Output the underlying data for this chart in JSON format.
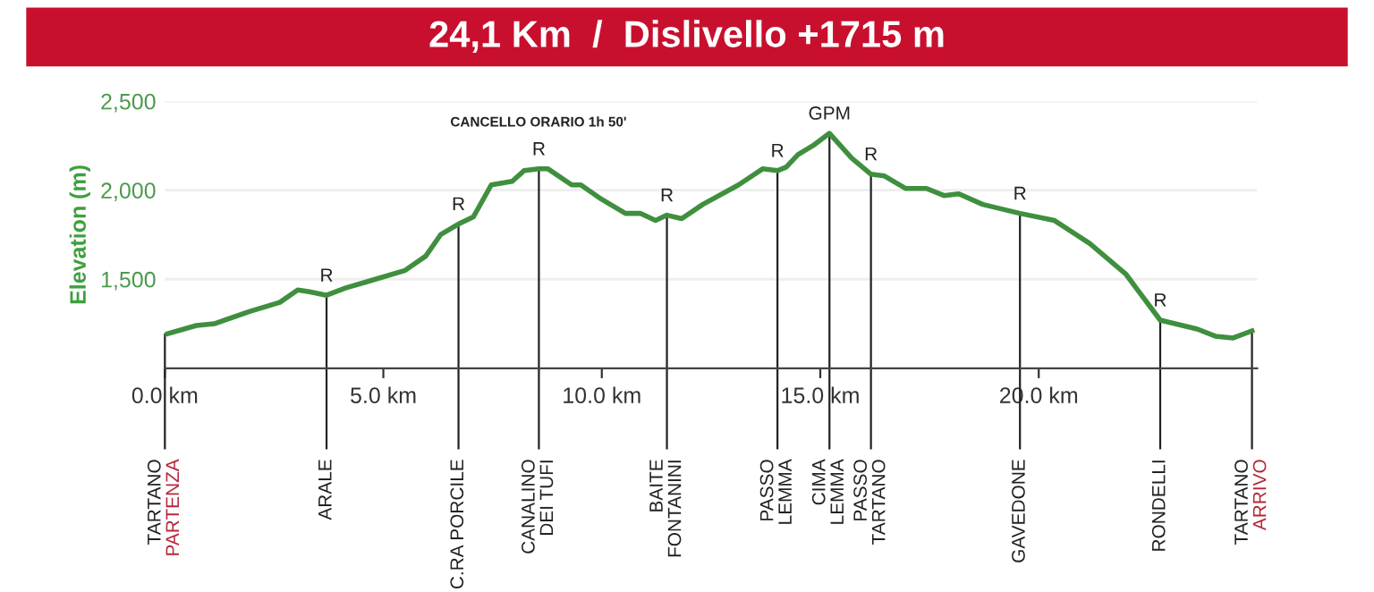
{
  "chart_data": {
    "type": "line",
    "title": "24,1 Km  /  Dislivello +1715 m",
    "ylabel": "Elevation (m)",
    "series": [
      {
        "color": "#3f8f3f",
        "x": [
          0,
          0.72,
          1.13,
          1.95,
          2.63,
          3.04,
          3.31,
          3.7,
          4.13,
          4.68,
          5.5,
          5.97,
          6.31,
          6.72,
          7.06,
          7.47,
          7.95,
          8.22,
          8.56,
          8.77,
          9.31,
          9.52,
          9.99,
          10.54,
          10.88,
          11.23,
          11.49,
          11.83,
          12.31,
          13.13,
          13.68,
          14.02,
          14.22,
          14.49,
          14.83,
          15.21,
          15.72,
          16.16,
          16.47,
          16.95,
          17.43,
          17.83,
          18.17,
          18.72,
          19.57,
          20.36,
          21.17,
          21.99,
          22.78,
          23.63,
          24.04,
          24.45,
          24.88
        ],
        "values": [
          1190,
          1240,
          1250,
          1320,
          1370,
          1440,
          1430,
          1410,
          1450,
          1490,
          1550,
          1630,
          1750,
          1810,
          1850,
          2030,
          2050,
          2110,
          2120,
          2120,
          2030,
          2030,
          1950,
          1870,
          1870,
          1830,
          1860,
          1840,
          1920,
          2030,
          2120,
          2110,
          2130,
          2200,
          2250,
          2320,
          2180,
          2090,
          2080,
          2010,
          2010,
          1970,
          1980,
          1920,
          1870,
          1830,
          1700,
          1530,
          1270,
          1220,
          1180,
          1170,
          1210
        ]
      }
    ],
    "xlim": [
      0,
      25
    ],
    "ylim": [
      1000,
      2500
    ],
    "xticks": [
      {
        "value": 0,
        "label": "0.0 km"
      },
      {
        "value": 5,
        "label": "5.0 km"
      },
      {
        "value": 10,
        "label": "10.0 km"
      },
      {
        "value": 15,
        "label": "15.0 km"
      },
      {
        "value": 20,
        "label": "20.0 km"
      }
    ],
    "yticks": [
      {
        "value": 1500,
        "label": "1,500"
      },
      {
        "value": 2000,
        "label": "2,000"
      },
      {
        "value": 2500,
        "label": "2,500"
      }
    ],
    "grid": "y",
    "legend": false,
    "marker": "none",
    "line_style": "solid",
    "ref_lines": [
      {
        "axis": "x",
        "value": 0,
        "label": "TARTANO\nPARTENZA"
      },
      {
        "axis": "x",
        "value": 3.7,
        "label": "ARALE"
      },
      {
        "axis": "x",
        "value": 6.72,
        "label": "C.RA PORCILE"
      },
      {
        "axis": "x",
        "value": 8.56,
        "label": "CANALINO\nDEI TUFI"
      },
      {
        "axis": "x",
        "value": 11.49,
        "label": "BAITE\nFONTANINI"
      },
      {
        "axis": "x",
        "value": 14.02,
        "label": "PASSO\nLEMMA"
      },
      {
        "axis": "x",
        "value": 15.21,
        "label": "CIMA\nLEMMA"
      },
      {
        "axis": "x",
        "value": 16.16,
        "label": "PASSO\nTARTANO"
      },
      {
        "axis": "x",
        "value": 19.57,
        "label": "GAVEDONE"
      },
      {
        "axis": "x",
        "value": 22.78,
        "label": "RONDELLI"
      },
      {
        "axis": "x",
        "value": 24.88,
        "label": "TARTANO\nARRIVO"
      }
    ],
    "annotations": [
      {
        "text": "R",
        "x": 3.7,
        "y": 1410
      },
      {
        "text": "R",
        "x": 6.72,
        "y": 1810
      },
      {
        "text": "R",
        "x": 8.56,
        "y": 2120
      },
      "CANCELLO ORARIO 1h 50'",
      {
        "text": "R",
        "x": 11.49,
        "y": 1860
      },
      {
        "text": "R",
        "x": 14.02,
        "y": 2110
      },
      {
        "text": "GPM",
        "x": 15.21,
        "y": 2320
      },
      {
        "text": "R",
        "x": 16.16,
        "y": 2090
      },
      {
        "text": "R",
        "x": 19.57,
        "y": 1870
      },
      {
        "text": "R",
        "x": 22.78,
        "y": 1270
      }
    ]
  }
}
